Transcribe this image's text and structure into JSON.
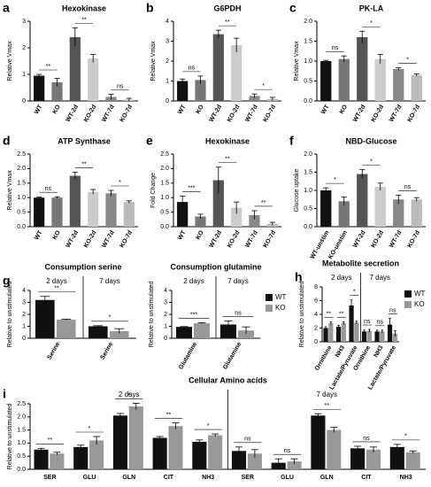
{
  "chart_data": [
    {
      "type": "bar",
      "panel": "a",
      "title": "Hexokinase",
      "ylabel": "Relative Vmax",
      "categories": [
        "WT",
        "KO",
        "WT-2d",
        "KO-2d",
        "WT-7d",
        "KO-7d"
      ],
      "values": [
        0.95,
        0.7,
        2.4,
        1.6,
        0.15,
        0.05
      ],
      "errors": [
        0.05,
        0.15,
        0.35,
        0.15,
        0.1,
        0.05
      ],
      "colors": [
        "#111111",
        "#777777",
        "#555555",
        "#cccccc",
        "#888888",
        "#bbbbbb"
      ],
      "significance": [
        "**",
        "**",
        "ns"
      ],
      "ylim": [
        0,
        3
      ],
      "yticks": [
        0,
        1,
        2,
        3
      ]
    },
    {
      "type": "bar",
      "panel": "b",
      "title": "G6PDH",
      "ylabel": "Relative Vmax",
      "categories": [
        "WT",
        "KO",
        "WT-2d",
        "KO-2d",
        "WT-7d",
        "KO-7d"
      ],
      "values": [
        1.0,
        1.05,
        3.35,
        2.8,
        0.25,
        0.1
      ],
      "errors": [
        0.1,
        0.2,
        0.2,
        0.35,
        0.1,
        0.08
      ],
      "colors": [
        "#111111",
        "#777777",
        "#555555",
        "#cccccc",
        "#888888",
        "#bbbbbb"
      ],
      "significance": [
        "ns",
        "**",
        "*"
      ],
      "ylim": [
        0,
        4
      ],
      "yticks": [
        0,
        1,
        2,
        3,
        4
      ]
    },
    {
      "type": "bar",
      "panel": "c",
      "title": "PK-LA",
      "ylabel": "Relative Vmax",
      "categories": [
        "WT",
        "KO",
        "WT-2d",
        "KO-2d",
        "WT-7d",
        "KO-7d"
      ],
      "values": [
        1.0,
        1.05,
        1.6,
        1.05,
        0.8,
        0.65
      ],
      "errors": [
        0.02,
        0.08,
        0.15,
        0.12,
        0.03,
        0.03
      ],
      "colors": [
        "#111111",
        "#777777",
        "#555555",
        "#cccccc",
        "#888888",
        "#bbbbbb"
      ],
      "significance": [
        "ns",
        "*",
        "*"
      ],
      "ylim": [
        0,
        2
      ],
      "yticks": [
        {
          "value": 0,
          "label": "0.0"
        },
        {
          "value": 0.5,
          "label": "0.5"
        },
        {
          "value": 1,
          "label": "1.0"
        },
        {
          "value": 1.5,
          "label": "1.5"
        },
        {
          "value": 2,
          "label": "2.0"
        }
      ]
    },
    {
      "type": "bar",
      "panel": "d",
      "title": "ATP Synthase",
      "ylabel": "Relative Vmax",
      "categories": [
        "WT",
        "KO",
        "WT-2d",
        "KO-2d",
        "WT-7d",
        "KO-7d"
      ],
      "values": [
        1.0,
        1.0,
        1.75,
        1.2,
        1.15,
        0.85
      ],
      "errors": [
        0.02,
        0.03,
        0.12,
        0.08,
        0.1,
        0.04
      ],
      "colors": [
        "#111111",
        "#777777",
        "#555555",
        "#cccccc",
        "#888888",
        "#bbbbbb"
      ],
      "significance": [
        "ns",
        "**",
        "*"
      ],
      "ylim": [
        0,
        2.5
      ],
      "yticks": [
        {
          "value": 0,
          "label": "0.0"
        },
        {
          "value": 0.5,
          "label": "0.5"
        },
        {
          "value": 1,
          "label": "1.0"
        },
        {
          "value": 1.5,
          "label": "1.5"
        },
        {
          "value": 2,
          "label": "2.0"
        },
        {
          "value": 2.5,
          "label": "2.5"
        }
      ]
    },
    {
      "type": "bar",
      "panel": "e",
      "title": "Hexokinase",
      "ylabel": "Fold Change",
      "categories": [
        "WT",
        "KO",
        "WT-2d",
        "KO-2d",
        "WT-7d",
        "KO-7d"
      ],
      "values": [
        0.85,
        0.35,
        1.6,
        0.65,
        0.4,
        0.1
      ],
      "errors": [
        0.2,
        0.08,
        0.45,
        0.2,
        0.15,
        0.05
      ],
      "colors": [
        "#111111",
        "#777777",
        "#555555",
        "#cccccc",
        "#888888",
        "#bbbbbb"
      ],
      "significance": [
        "***",
        "**",
        "**"
      ],
      "ylim": [
        0,
        2.5
      ],
      "yticks": [
        {
          "value": 0,
          "label": "0.0"
        },
        {
          "value": 0.5,
          "label": "0.5"
        },
        {
          "value": 1,
          "label": "1.0"
        },
        {
          "value": 1.5,
          "label": "1.5"
        },
        {
          "value": 2,
          "label": "2.0"
        },
        {
          "value": 2.5,
          "label": "2.5"
        }
      ]
    },
    {
      "type": "bar",
      "panel": "f",
      "title": "NBD-Glucose",
      "ylabel": "Glucose uptake",
      "categories": [
        "WT-unstim",
        "KO-unstim",
        "WT-2d",
        "KO-2d",
        "WT-7d",
        "KO-7d"
      ],
      "values": [
        1.0,
        0.7,
        1.45,
        1.1,
        0.75,
        0.75
      ],
      "errors": [
        0.07,
        0.12,
        0.12,
        0.1,
        0.12,
        0.05
      ],
      "colors": [
        "#111111",
        "#777777",
        "#555555",
        "#cccccc",
        "#888888",
        "#bbbbbb"
      ],
      "significance": [
        "*",
        "*",
        "ns"
      ],
      "ylim": [
        0,
        2
      ],
      "yticks": [
        {
          "value": 0,
          "label": "0.0"
        },
        {
          "value": 0.5,
          "label": "0.5"
        },
        {
          "value": 1,
          "label": "1.0"
        },
        {
          "value": 1.5,
          "label": "1.5"
        },
        {
          "value": 2,
          "label": "2.0"
        }
      ]
    },
    {
      "type": "grouped-bar",
      "panel": "g",
      "title": "Consumption serine",
      "ylabel": "Relative to unstimulated",
      "groups": [
        "2 days",
        "7 days"
      ],
      "categories": [
        "Serine",
        "Serine"
      ],
      "series": [
        {
          "color": "#111111",
          "values": [
            3.2,
            1.0
          ],
          "errors": [
            0.3,
            0.05
          ]
        },
        {
          "color": "#999999",
          "values": [
            1.55,
            0.6
          ],
          "errors": [
            0.05,
            0.2
          ]
        }
      ],
      "significance": [
        "**",
        "*"
      ],
      "ylim": [
        0,
        4
      ],
      "yticks": [
        0,
        1,
        2,
        3,
        4
      ]
    },
    {
      "type": "grouped-bar",
      "title": "Consumption glutamine",
      "ylabel": "Relative to unstimulated",
      "groups": [
        "2 days",
        "7 days"
      ],
      "categories": [
        "Glutamine",
        "Glutamine"
      ],
      "series": [
        {
          "name": "WT",
          "color": "#111111",
          "values": [
            0.95,
            1.15
          ],
          "errors": [
            0.03,
            0.3
          ]
        },
        {
          "name": "KO",
          "color": "#999999",
          "values": [
            1.25,
            0.65
          ],
          "errors": [
            0.05,
            0.3
          ]
        }
      ],
      "significance": [
        "***",
        "ns"
      ],
      "ylim": [
        0,
        4
      ],
      "yticks": [
        0,
        1,
        2,
        3,
        4
      ],
      "legend": "right"
    },
    {
      "type": "grouped-bar",
      "panel": "h",
      "title": "Metabolite secretion",
      "ylabel": "Relative to unstimulated",
      "groups": [
        "2 days",
        "7 days"
      ],
      "categories": [
        "Ornithine",
        "NH3",
        "Lactate/Pyruvate",
        "Ornithine",
        "NH3",
        "Lactate/Pyruvate"
      ],
      "series": [
        {
          "name": "WT",
          "color": "#111111",
          "values": [
            2.0,
            2.2,
            5.3,
            1.5,
            1.5,
            2.5
          ],
          "errors": [
            0.2,
            0.2,
            0.8,
            0.2,
            0.2,
            0.9
          ]
        },
        {
          "name": "KO",
          "color": "#999999",
          "values": [
            2.7,
            2.7,
            2.8,
            1.6,
            1.5,
            1.2
          ],
          "errors": [
            0.2,
            0.2,
            0.2,
            0.2,
            0.2,
            0.4
          ]
        }
      ],
      "significance": [
        "**",
        "**",
        "*",
        "ns",
        "ns",
        "ns"
      ],
      "ylim": [
        0,
        8
      ],
      "yticks": [
        0,
        2,
        4,
        6,
        8
      ],
      "legend": "right"
    },
    {
      "type": "grouped-bar",
      "panel": "i",
      "title": "Cellular Amino acids",
      "ylabel": "Relative to unstimulated",
      "groups": [
        "2 days",
        "7 days"
      ],
      "categories": [
        "SER",
        "GLU",
        "GLN",
        "CIT",
        "NH3",
        "SER",
        "GLU",
        "GLN",
        "CIT",
        "NH3"
      ],
      "series": [
        {
          "color": "#111111",
          "values": [
            0.75,
            0.85,
            2.05,
            1.2,
            1.05,
            0.7,
            0.25,
            2.05,
            0.8,
            0.85
          ],
          "errors": [
            0.05,
            0.07,
            0.08,
            0.05,
            0.07,
            0.15,
            0.15,
            0.07,
            0.08,
            0.1
          ]
        },
        {
          "color": "#999999",
          "values": [
            0.6,
            1.1,
            2.4,
            1.65,
            1.3,
            0.6,
            0.3,
            1.5,
            0.75,
            0.65
          ],
          "errors": [
            0.05,
            0.15,
            0.12,
            0.12,
            0.05,
            0.15,
            0.1,
            0.1,
            0.1,
            0.05
          ]
        }
      ],
      "significance": [
        "**",
        "*",
        "*",
        "**",
        "*",
        "ns",
        "ns",
        "**",
        "ns",
        "*"
      ],
      "ylim": [
        0,
        2.5
      ],
      "yticks": [
        {
          "value": 0,
          "label": "0.0"
        },
        {
          "value": 0.5,
          "label": "0.5"
        },
        {
          "value": 1,
          "label": "1.0"
        },
        {
          "value": 1.5,
          "label": "1.5"
        },
        {
          "value": 2,
          "label": "2.0"
        },
        {
          "value": 2.5,
          "label": "2.5"
        }
      ]
    }
  ]
}
